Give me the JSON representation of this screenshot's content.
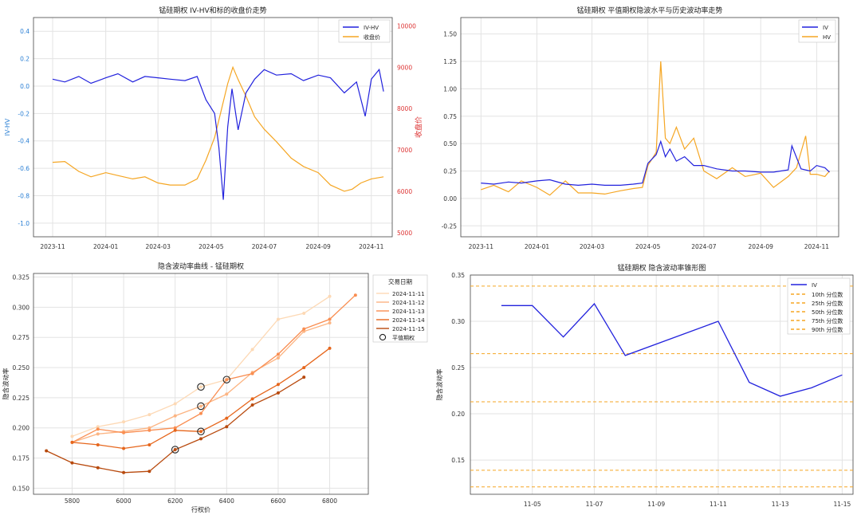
{
  "chart_data": [
    {
      "type": "line",
      "title": "锰硅期权 IV-HV和标的收盘价走势",
      "xlabel": "",
      "ylabel": "IV-HV",
      "y2label": "收盘价",
      "x_ticks": [
        "2023-11",
        "2024-01",
        "2024-03",
        "2024-05",
        "2024-07",
        "2024-09",
        "2024-11"
      ],
      "ylim": [
        -1.1,
        0.5
      ],
      "y_ticks": [
        "0.4",
        "0.2",
        "0.0",
        "-0.2",
        "-0.4",
        "-0.6",
        "-0.8",
        "-1.0"
      ],
      "y2lim": [
        4900,
        10200
      ],
      "y2_ticks": [
        "10000",
        "9000",
        "8000",
        "7000",
        "6000",
        "5000"
      ],
      "legend": "top-right",
      "colors": {
        "iv_hv": "#2222dd",
        "close": "#f5a623",
        "right_axis": "#dd3333",
        "left_axis": "#2a7fd4"
      },
      "series": [
        {
          "name": "IV-HV",
          "x": [
            "2023-11-01",
            "2023-11-15",
            "2023-12-01",
            "2023-12-15",
            "2024-01-01",
            "2024-01-15",
            "2024-02-01",
            "2024-02-15",
            "2024-03-01",
            "2024-03-15",
            "2024-04-01",
            "2024-04-15",
            "2024-04-25",
            "2024-05-05",
            "2024-05-10",
            "2024-05-15",
            "2024-05-20",
            "2024-05-25",
            "2024-06-01",
            "2024-06-10",
            "2024-06-20",
            "2024-07-01",
            "2024-07-15",
            "2024-08-01",
            "2024-08-15",
            "2024-09-01",
            "2024-09-15",
            "2024-10-01",
            "2024-10-15",
            "2024-10-25",
            "2024-11-01",
            "2024-11-10",
            "2024-11-15"
          ],
          "values": [
            0.05,
            0.03,
            0.07,
            0.02,
            0.06,
            0.09,
            0.03,
            0.07,
            0.06,
            0.05,
            0.04,
            0.07,
            -0.1,
            -0.2,
            -0.45,
            -0.83,
            -0.3,
            -0.02,
            -0.32,
            -0.05,
            0.05,
            0.12,
            0.08,
            0.09,
            0.04,
            0.08,
            0.06,
            -0.05,
            0.03,
            -0.22,
            0.05,
            0.12,
            -0.04
          ]
        },
        {
          "name": "收盘价",
          "x": [
            "2023-11-01",
            "2023-11-15",
            "2023-12-01",
            "2023-12-15",
            "2024-01-01",
            "2024-01-15",
            "2024-02-01",
            "2024-02-15",
            "2024-03-01",
            "2024-03-15",
            "2024-04-01",
            "2024-04-15",
            "2024-04-25",
            "2024-05-05",
            "2024-05-12",
            "2024-05-20",
            "2024-05-26",
            "2024-06-01",
            "2024-06-10",
            "2024-06-20",
            "2024-07-01",
            "2024-07-15",
            "2024-08-01",
            "2024-08-15",
            "2024-09-01",
            "2024-09-15",
            "2024-10-01",
            "2024-10-10",
            "2024-10-20",
            "2024-11-01",
            "2024-11-15"
          ],
          "values": [
            6700,
            6720,
            6480,
            6350,
            6450,
            6380,
            6300,
            6350,
            6200,
            6150,
            6150,
            6300,
            6750,
            7300,
            7900,
            8600,
            9000,
            8700,
            8300,
            7800,
            7500,
            7200,
            6800,
            6600,
            6450,
            6150,
            6000,
            6050,
            6200,
            6300,
            6350
          ]
        }
      ]
    },
    {
      "type": "line",
      "title": "锰硅期权 平值期权隐波水平与历史波动率走势",
      "xlabel": "",
      "ylabel": "",
      "x_ticks": [
        "2023-11",
        "2024-01",
        "2024-03",
        "2024-05",
        "2024-07",
        "2024-09",
        "2024-11"
      ],
      "ylim": [
        -0.35,
        1.65
      ],
      "y_ticks": [
        "1.50",
        "1.25",
        "1.00",
        "0.75",
        "0.50",
        "0.25",
        "0.00",
        "-0.25"
      ],
      "legend": "top-right",
      "colors": {
        "iv": "#2222dd",
        "hv": "#f5a623"
      },
      "series": [
        {
          "name": "IV",
          "x": [
            "2023-11-01",
            "2023-11-15",
            "2023-12-01",
            "2023-12-15",
            "2024-01-01",
            "2024-01-15",
            "2024-02-01",
            "2024-02-15",
            "2024-03-01",
            "2024-03-15",
            "2024-04-01",
            "2024-04-15",
            "2024-04-25",
            "2024-05-01",
            "2024-05-10",
            "2024-05-15",
            "2024-05-20",
            "2024-05-25",
            "2024-06-01",
            "2024-06-10",
            "2024-06-20",
            "2024-07-01",
            "2024-07-15",
            "2024-08-01",
            "2024-08-15",
            "2024-09-01",
            "2024-09-15",
            "2024-10-01",
            "2024-10-05",
            "2024-10-15",
            "2024-10-25",
            "2024-11-01",
            "2024-11-10",
            "2024-11-15"
          ],
          "values": [
            0.14,
            0.13,
            0.15,
            0.14,
            0.16,
            0.17,
            0.13,
            0.12,
            0.13,
            0.12,
            0.12,
            0.13,
            0.14,
            0.32,
            0.4,
            0.52,
            0.38,
            0.45,
            0.34,
            0.38,
            0.3,
            0.3,
            0.27,
            0.25,
            0.25,
            0.24,
            0.24,
            0.26,
            0.48,
            0.27,
            0.25,
            0.3,
            0.28,
            0.24
          ]
        },
        {
          "name": "HV",
          "x": [
            "2023-11-01",
            "2023-11-15",
            "2023-12-01",
            "2023-12-15",
            "2024-01-01",
            "2024-01-15",
            "2024-02-01",
            "2024-02-15",
            "2024-03-01",
            "2024-03-15",
            "2024-04-01",
            "2024-04-15",
            "2024-04-25",
            "2024-05-01",
            "2024-05-10",
            "2024-05-15",
            "2024-05-20",
            "2024-05-25",
            "2024-06-01",
            "2024-06-10",
            "2024-06-20",
            "2024-07-01",
            "2024-07-15",
            "2024-08-01",
            "2024-08-15",
            "2024-09-01",
            "2024-09-15",
            "2024-10-01",
            "2024-10-10",
            "2024-10-20",
            "2024-10-25",
            "2024-11-01",
            "2024-11-10",
            "2024-11-15"
          ],
          "values": [
            0.08,
            0.12,
            0.06,
            0.16,
            0.1,
            0.03,
            0.16,
            0.05,
            0.05,
            0.04,
            0.07,
            0.09,
            0.1,
            0.3,
            0.42,
            1.25,
            0.55,
            0.5,
            0.65,
            0.45,
            0.55,
            0.25,
            0.18,
            0.28,
            0.2,
            0.23,
            0.1,
            0.2,
            0.28,
            0.57,
            0.22,
            0.22,
            0.2,
            0.25
          ]
        }
      ]
    },
    {
      "type": "line",
      "title": "隐含波动率曲线 - 锰硅期权",
      "xlabel": "行权价",
      "ylabel": "隐含波动率",
      "x_ticks": [
        "5800",
        "6000",
        "6200",
        "6400",
        "6600",
        "6800"
      ],
      "xlim": [
        5650,
        6950
      ],
      "ylim": [
        0.145,
        0.328
      ],
      "y_ticks": [
        "0.325",
        "0.300",
        "0.275",
        "0.250",
        "0.225",
        "0.200",
        "0.175",
        "0.150"
      ],
      "legend_title": "交易日期",
      "legend": "upper-right, outside",
      "series": [
        {
          "name": "2024-11-11",
          "color": "#fdd9b5",
          "x": [
            5800,
            5900,
            6000,
            6100,
            6200,
            6300,
            6400,
            6500,
            6600,
            6700,
            6800
          ],
          "values": [
            0.193,
            0.201,
            0.205,
            0.211,
            0.22,
            0.234,
            0.24,
            0.265,
            0.29,
            0.295,
            0.309
          ]
        },
        {
          "name": "2024-11-12",
          "color": "#fcb482",
          "x": [
            5800,
            5900,
            6000,
            6100,
            6200,
            6300,
            6400,
            6500,
            6600,
            6700,
            6800
          ],
          "values": [
            0.188,
            0.195,
            0.197,
            0.2,
            0.21,
            0.218,
            0.228,
            0.246,
            0.258,
            0.28,
            0.287
          ]
        },
        {
          "name": "2024-11-13",
          "color": "#f98e52",
          "x": [
            5800,
            5900,
            6000,
            6100,
            6200,
            6300,
            6400,
            6500,
            6600,
            6700,
            6800,
            6900
          ],
          "values": [
            0.188,
            0.199,
            0.196,
            0.198,
            0.2,
            0.212,
            0.24,
            0.245,
            0.261,
            0.282,
            0.29,
            0.31
          ]
        },
        {
          "name": "2024-11-14",
          "color": "#e6661c",
          "x": [
            5800,
            5900,
            6000,
            6100,
            6200,
            6300,
            6400,
            6500,
            6600,
            6700,
            6800
          ],
          "values": [
            0.188,
            0.186,
            0.183,
            0.186,
            0.198,
            0.197,
            0.208,
            0.224,
            0.236,
            0.25,
            0.266
          ]
        },
        {
          "name": "2024-11-15",
          "color": "#b84a0e",
          "x": [
            5700,
            5800,
            5900,
            6000,
            6100,
            6200,
            6300,
            6400,
            6500,
            6600,
            6700
          ],
          "values": [
            0.181,
            0.171,
            0.167,
            0.163,
            0.164,
            0.182,
            0.191,
            0.201,
            0.219,
            0.229,
            0.242
          ]
        }
      ],
      "atm_label": "平值期权",
      "atm_points": [
        {
          "x": 6300,
          "y": 0.234
        },
        {
          "x": 6400,
          "y": 0.24
        },
        {
          "x": 6300,
          "y": 0.218
        },
        {
          "x": 6300,
          "y": 0.197
        },
        {
          "x": 6200,
          "y": 0.182
        }
      ]
    },
    {
      "type": "line",
      "title": "锰硅期权 隐含波动率锥形图",
      "xlabel": "",
      "ylabel": "隐含波动率",
      "x_ticks": [
        "11-05",
        "11-07",
        "11-09",
        "11-11",
        "11-13",
        "11-15"
      ],
      "ylim": [
        0.113,
        0.35
      ],
      "y_ticks": [
        "0.35",
        "0.30",
        "0.25",
        "0.20",
        "0.15"
      ],
      "legend": "top-right",
      "colors": {
        "iv": "#2222dd",
        "percentile": "#f5a623"
      },
      "series": [
        {
          "name": "IV",
          "x": [
            "2024-11-04",
            "2024-11-05",
            "2024-11-06",
            "2024-11-07",
            "2024-11-08",
            "2024-11-11",
            "2024-11-12",
            "2024-11-13",
            "2024-11-14",
            "2024-11-15"
          ],
          "values": [
            0.317,
            0.317,
            0.283,
            0.319,
            0.263,
            0.3,
            0.234,
            0.219,
            0.228,
            0.242
          ]
        }
      ],
      "percentiles": [
        {
          "name": "10th 分位数",
          "value": 0.121
        },
        {
          "name": "25th 分位数",
          "value": 0.139
        },
        {
          "name": "50th 分位数",
          "value": 0.213
        },
        {
          "name": "75th 分位数",
          "value": 0.265
        },
        {
          "name": "90th 分位数",
          "value": 0.338
        }
      ]
    }
  ]
}
